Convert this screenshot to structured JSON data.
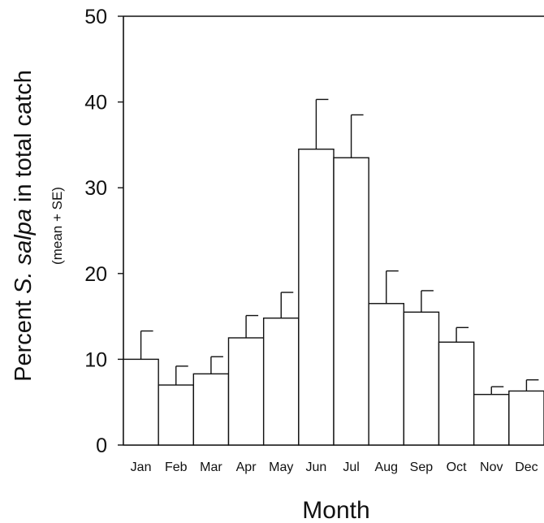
{
  "chart_data": {
    "type": "bar",
    "categories": [
      "Jan",
      "Feb",
      "Mar",
      "Apr",
      "May",
      "Jun",
      "Jul",
      "Aug",
      "Sep",
      "Oct",
      "Nov",
      "Dec"
    ],
    "values": [
      10.0,
      7.0,
      8.3,
      12.5,
      14.8,
      34.5,
      33.5,
      16.5,
      15.5,
      12.0,
      5.9,
      6.3
    ],
    "errors_plus": [
      3.3,
      2.2,
      2.0,
      2.6,
      3.0,
      5.8,
      5.0,
      3.8,
      2.5,
      1.7,
      0.9,
      1.3
    ],
    "ylim": [
      0,
      50
    ],
    "yticks": [
      "0",
      "10",
      "20",
      "30",
      "40",
      "50"
    ],
    "xlabel": "Month",
    "ylabel_prefix": "Percent ",
    "ylabel_species": "S. salpa",
    "ylabel_suffix": " in total catch",
    "ylabel_sub": "(mean + SE)",
    "bar_fill": "#ffffff",
    "line_color": "#111111"
  }
}
